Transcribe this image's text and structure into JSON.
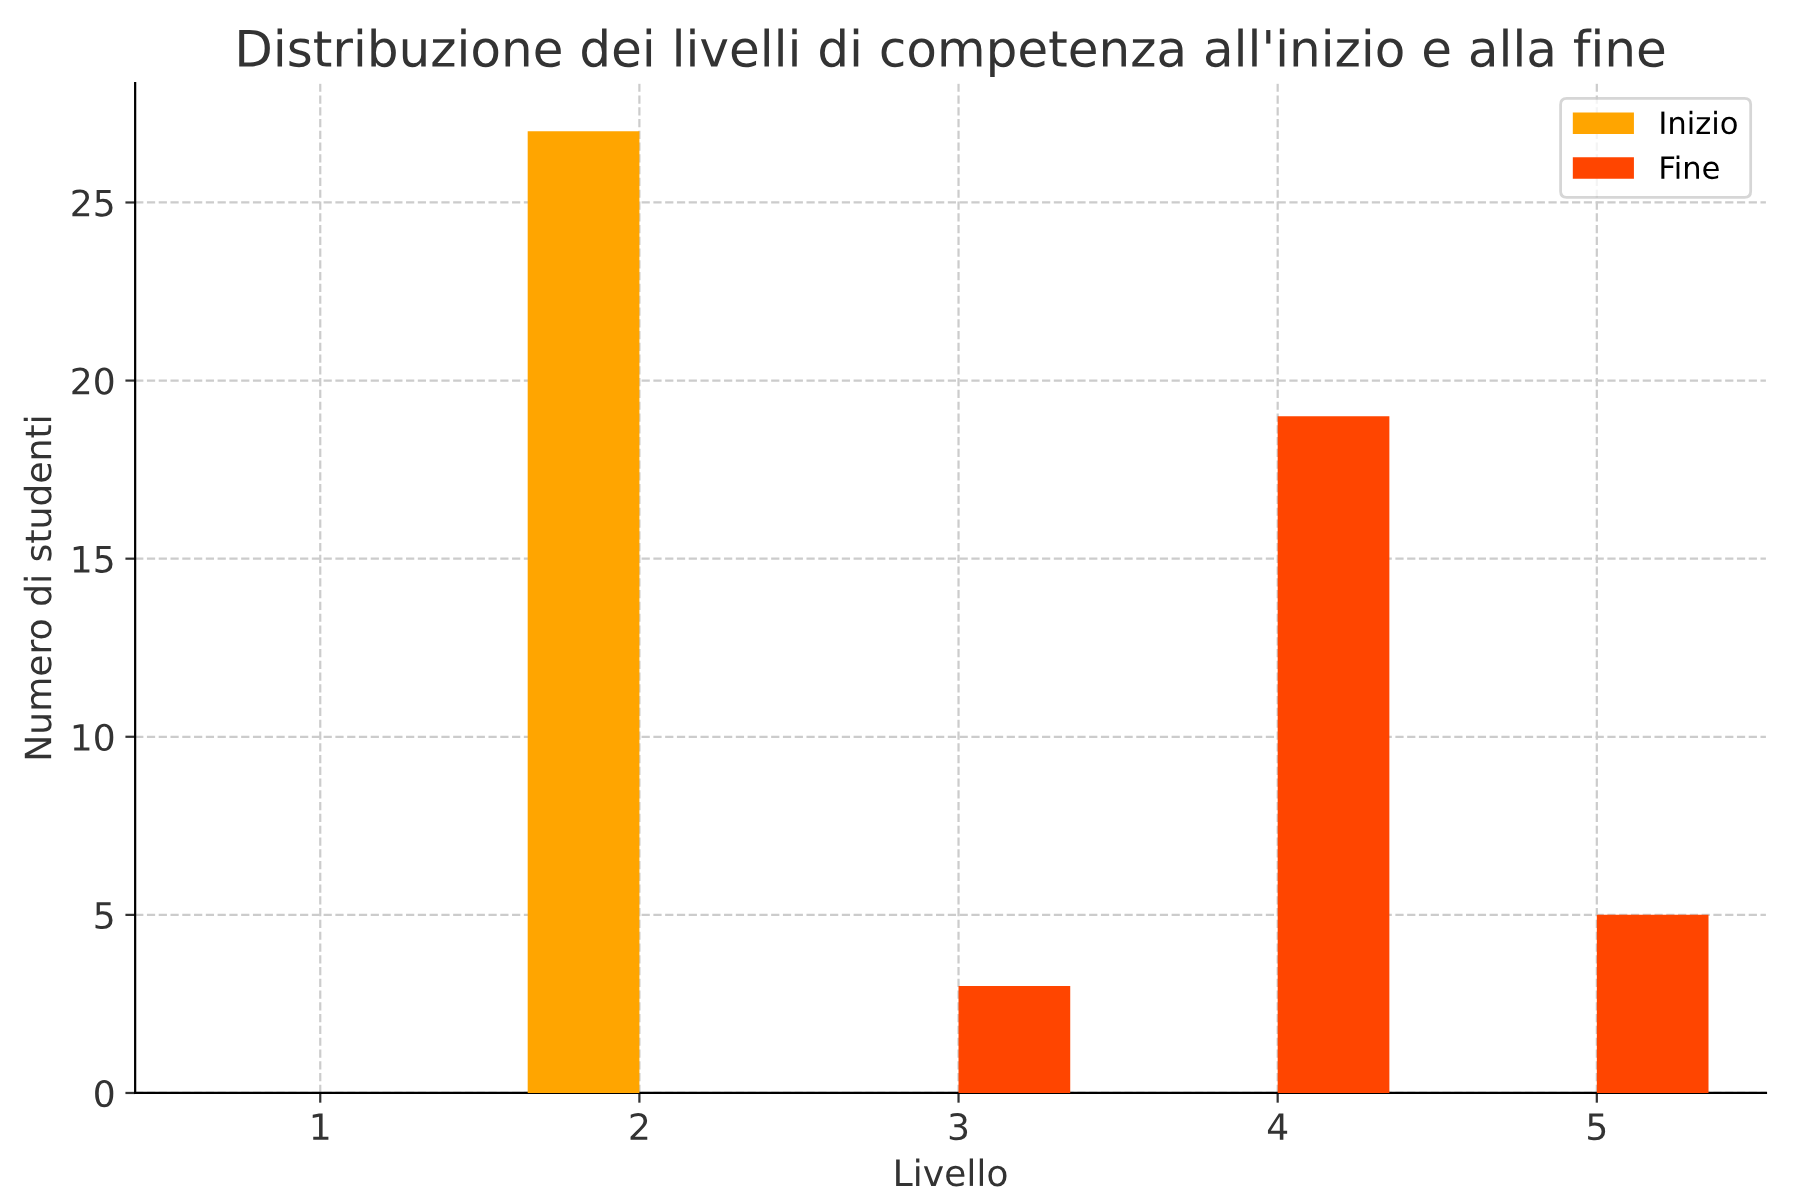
{
  "chart_data": {
    "type": "bar",
    "title": "Distribuzione dei livelli di competenza all'inizio e alla fine",
    "xlabel": "Livello",
    "ylabel": "Numero di studenti",
    "x": [
      1,
      2,
      3,
      4,
      5
    ],
    "series": [
      {
        "name": "Inizio",
        "color": "#ffa500",
        "values": [
          0,
          27,
          0,
          0,
          0
        ]
      },
      {
        "name": "Fine",
        "color": "#ff4500",
        "values": [
          0,
          0,
          3,
          19,
          5
        ]
      }
    ],
    "xlim": [
      0.42,
      5.53
    ],
    "xticks": [
      1,
      2,
      3,
      4,
      5
    ],
    "ylim": [
      0,
      28.35
    ],
    "yticks": [
      0,
      5,
      10,
      15,
      20,
      25
    ],
    "grid": true,
    "legend": "top right"
  }
}
